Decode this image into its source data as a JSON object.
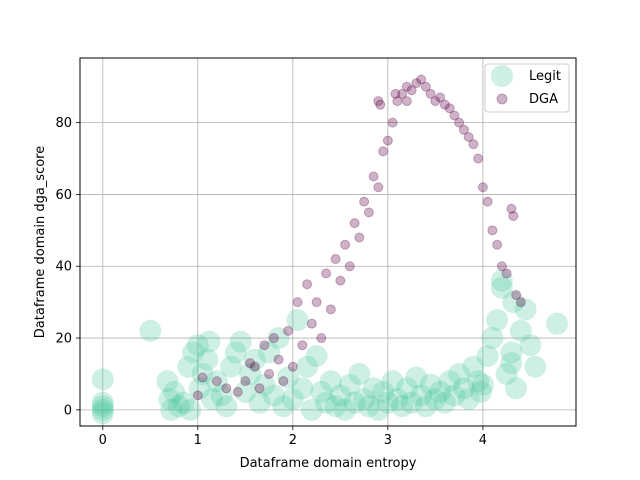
{
  "chart_data": {
    "type": "scatter",
    "title": "",
    "xlabel": "Dataframe domain entropy",
    "ylabel": "Dataframe domain dga_score",
    "xlim": [
      -0.24,
      4.98
    ],
    "ylim": [
      -4.5,
      98
    ],
    "xticks": [
      0,
      1,
      2,
      3,
      4
    ],
    "yticks": [
      0,
      20,
      40,
      60,
      80
    ],
    "grid": true,
    "legend_position": "top-right",
    "series": [
      {
        "name": "Legit",
        "color": "#3dc494",
        "opacity": 0.25,
        "marker_size": "large",
        "points": [
          [
            0,
            0
          ],
          [
            0,
            1
          ],
          [
            0,
            2
          ],
          [
            0,
            -1
          ],
          [
            0,
            8.5
          ],
          [
            0.5,
            22
          ],
          [
            0.68,
            8
          ],
          [
            0.7,
            3
          ],
          [
            0.72,
            0
          ],
          [
            0.75,
            5
          ],
          [
            0.8,
            1
          ],
          [
            0.85,
            2
          ],
          [
            0.9,
            12
          ],
          [
            0.92,
            0
          ],
          [
            0.95,
            16
          ],
          [
            1.0,
            18
          ],
          [
            1.02,
            6
          ],
          [
            1.05,
            10
          ],
          [
            1.1,
            14
          ],
          [
            1.12,
            19
          ],
          [
            1.15,
            3
          ],
          [
            1.2,
            8
          ],
          [
            1.25,
            4
          ],
          [
            1.3,
            1
          ],
          [
            1.35,
            12
          ],
          [
            1.4,
            16
          ],
          [
            1.45,
            19
          ],
          [
            1.5,
            5
          ],
          [
            1.55,
            10
          ],
          [
            1.6,
            14
          ],
          [
            1.65,
            2
          ],
          [
            1.7,
            7
          ],
          [
            1.75,
            16
          ],
          [
            1.8,
            4
          ],
          [
            1.85,
            20
          ],
          [
            1.9,
            1
          ],
          [
            1.95,
            9
          ],
          [
            2.0,
            3
          ],
          [
            2.05,
            25
          ],
          [
            2.1,
            6
          ],
          [
            2.15,
            12
          ],
          [
            2.2,
            0
          ],
          [
            2.25,
            15
          ],
          [
            2.3,
            5
          ],
          [
            2.35,
            2
          ],
          [
            2.4,
            8
          ],
          [
            2.45,
            1
          ],
          [
            2.5,
            4
          ],
          [
            2.55,
            0
          ],
          [
            2.6,
            7
          ],
          [
            2.65,
            2
          ],
          [
            2.7,
            10
          ],
          [
            2.75,
            3
          ],
          [
            2.8,
            1
          ],
          [
            2.85,
            6
          ],
          [
            2.9,
            0
          ],
          [
            2.95,
            5
          ],
          [
            3.0,
            2
          ],
          [
            3.05,
            8
          ],
          [
            3.1,
            3
          ],
          [
            3.15,
            1
          ],
          [
            3.2,
            6
          ],
          [
            3.25,
            2
          ],
          [
            3.3,
            9
          ],
          [
            3.35,
            4
          ],
          [
            3.4,
            1
          ],
          [
            3.45,
            7
          ],
          [
            3.5,
            3
          ],
          [
            3.55,
            5
          ],
          [
            3.6,
            2
          ],
          [
            3.65,
            8
          ],
          [
            3.7,
            4
          ],
          [
            3.75,
            10
          ],
          [
            3.8,
            6
          ],
          [
            3.85,
            3
          ],
          [
            3.9,
            12
          ],
          [
            3.95,
            8
          ],
          [
            4.0,
            7
          ],
          [
            4.05,
            15
          ],
          [
            4.1,
            20
          ],
          [
            4.15,
            25
          ],
          [
            4.2,
            34
          ],
          [
            4.25,
            10
          ],
          [
            4.3,
            13
          ],
          [
            4.35,
            6
          ],
          [
            4.4,
            22
          ],
          [
            4.45,
            28
          ],
          [
            4.5,
            18
          ],
          [
            4.55,
            12
          ],
          [
            4.2,
            36
          ],
          [
            4.32,
            30
          ],
          [
            4.78,
            24
          ],
          [
            4.3,
            16
          ],
          [
            3.98,
            5
          ]
        ]
      },
      {
        "name": "DGA",
        "color": "#5c0046",
        "opacity": 0.3,
        "marker_size": "small",
        "points": [
          [
            1.0,
            4
          ],
          [
            1.05,
            9
          ],
          [
            1.2,
            8
          ],
          [
            1.3,
            6
          ],
          [
            1.42,
            5
          ],
          [
            1.5,
            8
          ],
          [
            1.55,
            13
          ],
          [
            1.6,
            12
          ],
          [
            1.65,
            6
          ],
          [
            1.7,
            18
          ],
          [
            1.75,
            10
          ],
          [
            1.8,
            20
          ],
          [
            1.85,
            14
          ],
          [
            1.9,
            8
          ],
          [
            1.95,
            22
          ],
          [
            2.0,
            12
          ],
          [
            2.05,
            30
          ],
          [
            2.1,
            18
          ],
          [
            2.15,
            35
          ],
          [
            2.2,
            24
          ],
          [
            2.25,
            30
          ],
          [
            2.3,
            20
          ],
          [
            2.35,
            38
          ],
          [
            2.4,
            28
          ],
          [
            2.45,
            42
          ],
          [
            2.5,
            36
          ],
          [
            2.55,
            46
          ],
          [
            2.6,
            40
          ],
          [
            2.65,
            52
          ],
          [
            2.7,
            48
          ],
          [
            2.75,
            58
          ],
          [
            2.8,
            55
          ],
          [
            2.85,
            65
          ],
          [
            2.9,
            62
          ],
          [
            2.95,
            72
          ],
          [
            3.0,
            75
          ],
          [
            3.05,
            80
          ],
          [
            3.1,
            86
          ],
          [
            3.15,
            88
          ],
          [
            3.2,
            90
          ],
          [
            3.25,
            89
          ],
          [
            3.3,
            91
          ],
          [
            3.35,
            92
          ],
          [
            3.4,
            90
          ],
          [
            3.45,
            88
          ],
          [
            3.5,
            86
          ],
          [
            3.55,
            87
          ],
          [
            3.6,
            85
          ],
          [
            3.65,
            84
          ],
          [
            3.7,
            82
          ],
          [
            3.75,
            80
          ],
          [
            3.8,
            78
          ],
          [
            3.85,
            76
          ],
          [
            3.9,
            74
          ],
          [
            3.95,
            70
          ],
          [
            4.0,
            62
          ],
          [
            4.05,
            58
          ],
          [
            4.1,
            50
          ],
          [
            4.15,
            46
          ],
          [
            4.2,
            40
          ],
          [
            4.25,
            38
          ],
          [
            4.3,
            56
          ],
          [
            4.32,
            54
          ],
          [
            4.35,
            32
          ],
          [
            4.4,
            30
          ],
          [
            2.9,
            86
          ],
          [
            2.92,
            85
          ],
          [
            3.08,
            88
          ],
          [
            3.2,
            86
          ]
        ]
      }
    ]
  }
}
